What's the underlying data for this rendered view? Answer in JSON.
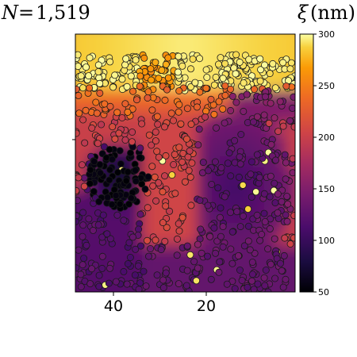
{
  "chart_data": {
    "type": "heatmap",
    "title_left": "N = 1,519",
    "title_right": "ξ (nm)",
    "title_right_symbol": "ξ",
    "title_right_unit": "(nm)",
    "title_left_parts": {
      "symbol": "N",
      "equals": "=",
      "number": "1,519"
    },
    "x_axis": {
      "direction": "reversed",
      "ticks": [
        40,
        20
      ],
      "lim": [
        48,
        1
      ]
    },
    "colorbar": {
      "colormap": "inferno",
      "range": [
        50,
        300
      ],
      "ticks": [
        50,
        100,
        150,
        200,
        250,
        300
      ],
      "tick_labels": [
        "50",
        "100",
        "150",
        "200",
        "250",
        "300"
      ]
    },
    "description_points": "scatter points overlaid on a smoothed field, colored by ξ",
    "regions": [
      {
        "label": "top band",
        "value": 295
      },
      {
        "label": "upper-middle",
        "value": 225
      },
      {
        "label": "left-dark cluster",
        "value": 55
      },
      {
        "label": "right blob",
        "value": 110
      },
      {
        "label": "lower-left",
        "value": 120
      },
      {
        "label": "middle channel",
        "value": 200
      }
    ]
  }
}
